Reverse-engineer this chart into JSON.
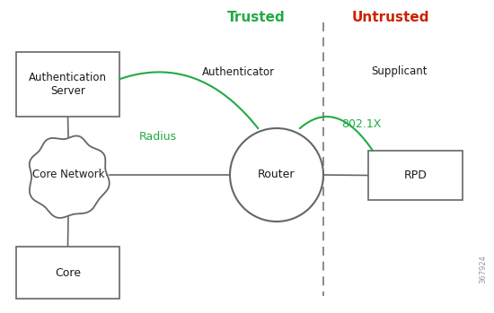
{
  "bg_color": "#ffffff",
  "line_color": "#666666",
  "green_color": "#22aa44",
  "red_color": "#cc2200",
  "text_color": "#1a1a1a",
  "trusted_label": "Trusted",
  "untrusted_label": "Untrusted",
  "authenticator_label": "Authenticator",
  "supplicant_label": "Supplicant",
  "radius_label": "Radius",
  "dot1x_label": "802.1X",
  "auth_server_label": "Authentication\nServer",
  "core_network_label": "Core Network",
  "core_label": "Core",
  "router_label": "Router",
  "rpd_label": "RPD",
  "watermark": "367924"
}
